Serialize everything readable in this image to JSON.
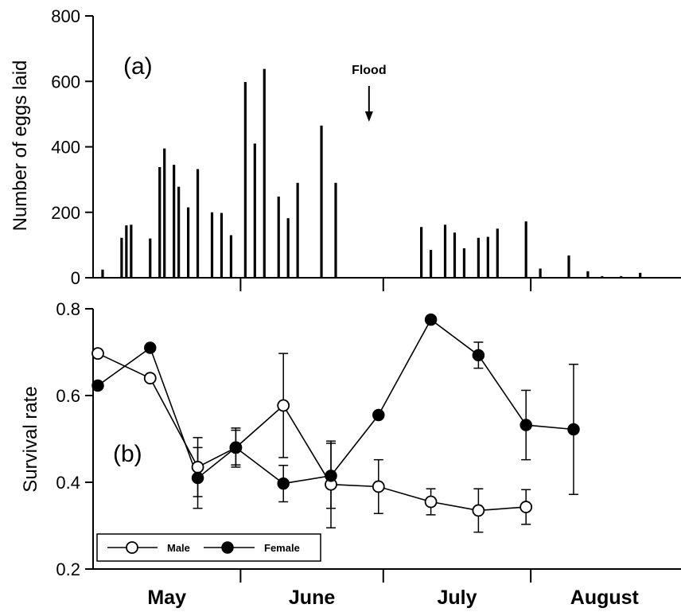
{
  "chart_data": [
    {
      "type": "bar",
      "panel_label": "(a)",
      "ylabel": "Number of eggs laid",
      "ylim": [
        0,
        800
      ],
      "yticks": [
        0,
        200,
        400,
        600,
        800
      ],
      "ytick_labels": [
        "0",
        "200",
        "400",
        "600",
        "800"
      ],
      "grid": false,
      "annotation": {
        "text": "Flood",
        "date": "Jun 28"
      },
      "bars": [
        {
          "date": "May 3",
          "value": 25
        },
        {
          "date": "May 7",
          "value": 122
        },
        {
          "date": "May 8",
          "value": 160
        },
        {
          "date": "May 9",
          "value": 162
        },
        {
          "date": "May 13",
          "value": 120
        },
        {
          "date": "May 15",
          "value": 338
        },
        {
          "date": "May 16",
          "value": 395
        },
        {
          "date": "May 18",
          "value": 345
        },
        {
          "date": "May 19",
          "value": 278
        },
        {
          "date": "May 21",
          "value": 215
        },
        {
          "date": "May 23",
          "value": 332
        },
        {
          "date": "May 26",
          "value": 200
        },
        {
          "date": "May 28",
          "value": 198
        },
        {
          "date": "May 30",
          "value": 130
        },
        {
          "date": "Jun 2",
          "value": 598
        },
        {
          "date": "Jun 4",
          "value": 410
        },
        {
          "date": "Jun 6",
          "value": 638
        },
        {
          "date": "Jun 9",
          "value": 248
        },
        {
          "date": "Jun 11",
          "value": 182
        },
        {
          "date": "Jun 13",
          "value": 290
        },
        {
          "date": "Jun 18",
          "value": 465
        },
        {
          "date": "Jun 21",
          "value": 290
        },
        {
          "date": "Jul 9",
          "value": 155
        },
        {
          "date": "Jul 11",
          "value": 85
        },
        {
          "date": "Jul 14",
          "value": 162
        },
        {
          "date": "Jul 16",
          "value": 138
        },
        {
          "date": "Jul 18",
          "value": 90
        },
        {
          "date": "Jul 21",
          "value": 122
        },
        {
          "date": "Jul 23",
          "value": 125
        },
        {
          "date": "Jul 25",
          "value": 150
        },
        {
          "date": "Jul 31",
          "value": 172
        },
        {
          "date": "Aug 3",
          "value": 28
        },
        {
          "date": "Aug 9",
          "value": 68
        },
        {
          "date": "Aug 13",
          "value": 20
        },
        {
          "date": "Aug 16",
          "value": 5
        },
        {
          "date": "Aug 20",
          "value": 5
        },
        {
          "date": "Aug 24",
          "value": 15
        }
      ]
    },
    {
      "type": "line",
      "panel_label": "(b)",
      "ylabel": "Survival rate",
      "ylim": [
        0.2,
        0.8
      ],
      "yticks": [
        0.2,
        0.4,
        0.6,
        0.8
      ],
      "ytick_labels": [
        "0.2",
        "0.4",
        "0.6",
        "0.8"
      ],
      "grid": false,
      "legend_position": "bottom-left",
      "months": [
        "May",
        "June",
        "July",
        "August"
      ],
      "series": [
        {
          "name": "Male",
          "marker": "open-circle",
          "points": [
            {
              "date": "May 2",
              "y": 0.697,
              "err": null
            },
            {
              "date": "May 13",
              "y": 0.64,
              "err": null
            },
            {
              "date": "May 23",
              "y": 0.435,
              "err": 0.068
            },
            {
              "date": "May 31",
              "y": 0.48,
              "err": 0.04
            },
            {
              "date": "Jun 10",
              "y": 0.577,
              "err": 0.12
            },
            {
              "date": "Jun 20",
              "y": 0.395,
              "err": 0.1
            },
            {
              "date": "Jun 30",
              "y": 0.39,
              "err": 0.062
            },
            {
              "date": "Jul 11",
              "y": 0.355,
              "err": 0.03
            },
            {
              "date": "Jul 21",
              "y": 0.335,
              "err": 0.05
            },
            {
              "date": "Jul 31",
              "y": 0.343,
              "err": 0.04
            }
          ]
        },
        {
          "name": "Female",
          "marker": "filled-circle",
          "points": [
            {
              "date": "May 2",
              "y": 0.623,
              "err": null
            },
            {
              "date": "May 13",
              "y": 0.71,
              "err": null
            },
            {
              "date": "May 23",
              "y": 0.41,
              "err": 0.07
            },
            {
              "date": "May 31",
              "y": 0.48,
              "err": 0.045
            },
            {
              "date": "Jun 10",
              "y": 0.397,
              "err": 0.042
            },
            {
              "date": "Jun 20",
              "y": 0.415,
              "err": 0.075
            },
            {
              "date": "Jun 30",
              "y": 0.555,
              "err": null
            },
            {
              "date": "Jul 11",
              "y": 0.775,
              "err": null
            },
            {
              "date": "Jul 21",
              "y": 0.693,
              "err": 0.03
            },
            {
              "date": "Jul 31",
              "y": 0.532,
              "err": 0.08
            },
            {
              "date": "Aug 10",
              "y": 0.522,
              "err": 0.15
            }
          ]
        }
      ]
    }
  ]
}
